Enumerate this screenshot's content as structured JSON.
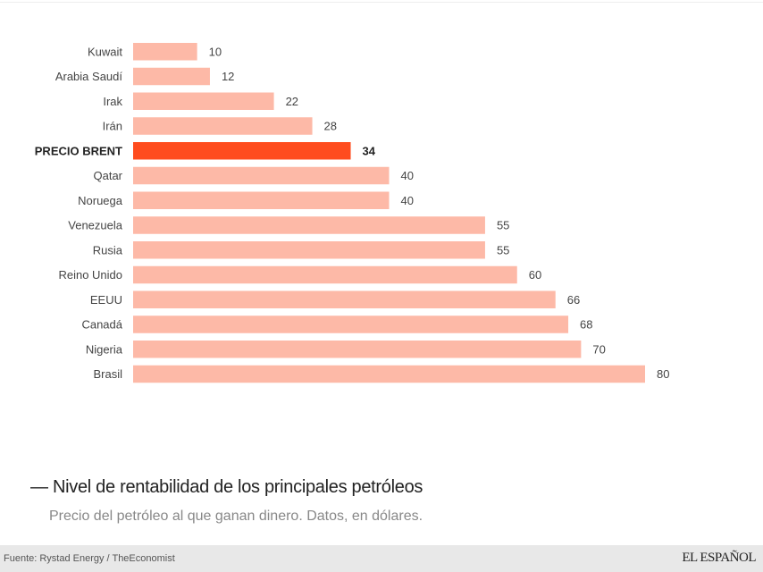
{
  "chart_data": {
    "type": "bar",
    "orientation": "horizontal",
    "categories": [
      "Kuwait",
      "Arabia Saudí",
      "Irak",
      "Irán",
      "PRECIO BRENT",
      "Qatar",
      "Noruega",
      "Venezuela",
      "Rusia",
      "Reino Unido",
      "EEUU",
      "Canadá",
      "Nigeria",
      "Brasil"
    ],
    "values": [
      10,
      12,
      22,
      28,
      34,
      40,
      40,
      55,
      55,
      60,
      66,
      68,
      70,
      80
    ],
    "highlight": "PRECIO BRENT",
    "colors": {
      "bar": "#fdb9a7",
      "highlight": "#ff4c1e"
    },
    "xlim": [
      0,
      80
    ],
    "grid": false,
    "data_labels": true,
    "title": "Nivel de rentabilidad de los principales petróleos",
    "subtitle": "Precio del petróleo al que ganan dinero. Datos, en dólares."
  },
  "footer": {
    "source": "Fuente: Rystad Energy / TheEconomist",
    "logo": "EL ESPAÑOL"
  }
}
